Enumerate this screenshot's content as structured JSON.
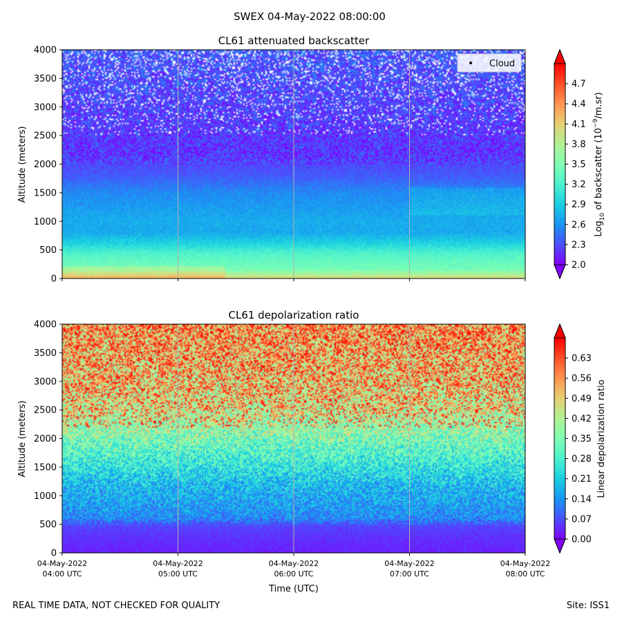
{
  "figure": {
    "suptitle": "SWEX 04-May-2022 08:00:00",
    "footer_left": "REAL TIME DATA, NOT CHECKED FOR QUALITY",
    "footer_right": "Site: ISS1",
    "xlabel": "Time (UTC)"
  },
  "colors": {
    "cmap": [
      "#8000ff",
      "#4c4ffc",
      "#1996f3",
      "#1acfe2",
      "#4cf2ce",
      "#80feb3",
      "#b2f295",
      "#e6cf73",
      "#ff964f",
      "#ff4f28",
      "#ff0000"
    ],
    "grid": "#b0b0b0",
    "cloud_marker": "#000000"
  },
  "chart_data": [
    {
      "type": "heatmap",
      "title": "CL61 attenuated backscatter",
      "ylabel": "Altitude (meters)",
      "ylim": [
        0,
        4000
      ],
      "yticks": [
        "0",
        "500",
        "1000",
        "1500",
        "2000",
        "2500",
        "3000",
        "3500",
        "4000"
      ],
      "x_range_utc_hours": [
        4,
        8
      ],
      "xticks": [
        {
          "date": "04-May-2022",
          "time": "04:00 UTC"
        },
        {
          "date": "04-May-2022",
          "time": "05:00 UTC"
        },
        {
          "date": "04-May-2022",
          "time": "06:00 UTC"
        },
        {
          "date": "04-May-2022",
          "time": "07:00 UTC"
        },
        {
          "date": "04-May-2022",
          "time": "08:00 UTC"
        }
      ],
      "show_xtick_labels": false,
      "legend": {
        "label": "Cloud",
        "loc": "top-right"
      },
      "colorbar": {
        "label_prefix": "Log",
        "label_sub": "10",
        "label_mid": " of backscatter (10",
        "label_sup": "−9",
        "label_suffix": "/m.sr)",
        "range": [
          2.0,
          5.0
        ],
        "ticks": [
          "2.0",
          "2.3",
          "2.6",
          "2.9",
          "3.2",
          "3.5",
          "3.8",
          "4.1",
          "4.4",
          "4.7"
        ],
        "extend": "both"
      },
      "profile": {
        "altitude_m": [
          0,
          150,
          300,
          450,
          600,
          800,
          1000,
          1200,
          1500,
          1800,
          2200,
          2800,
          3400,
          4000
        ],
        "typical_value": [
          4.0,
          3.45,
          3.35,
          3.2,
          2.95,
          2.7,
          2.72,
          2.65,
          2.55,
          2.35,
          2.2,
          2.25,
          2.3,
          2.35
        ],
        "missing_fraction_above_2500m": 0.12
      }
    },
    {
      "type": "heatmap",
      "title": "CL61 depolarization ratio",
      "ylabel": "Altitude (meters)",
      "ylim": [
        0,
        4000
      ],
      "yticks": [
        "0",
        "500",
        "1000",
        "1500",
        "2000",
        "2500",
        "3000",
        "3500",
        "4000"
      ],
      "x_range_utc_hours": [
        4,
        8
      ],
      "xticks": [
        {
          "date": "04-May-2022",
          "time": "04:00 UTC"
        },
        {
          "date": "04-May-2022",
          "time": "05:00 UTC"
        },
        {
          "date": "04-May-2022",
          "time": "06:00 UTC"
        },
        {
          "date": "04-May-2022",
          "time": "07:00 UTC"
        },
        {
          "date": "04-May-2022",
          "time": "08:00 UTC"
        }
      ],
      "show_xtick_labels": true,
      "colorbar": {
        "label": "Linear depolarization ratio",
        "range": [
          0.0,
          0.7
        ],
        "ticks": [
          "0.00",
          "0.07",
          "0.14",
          "0.21",
          "0.28",
          "0.35",
          "0.42",
          "0.49",
          "0.56",
          "0.63"
        ],
        "extend": "both"
      },
      "profile": {
        "altitude_m": [
          0,
          200,
          450,
          600,
          900,
          1200,
          1500,
          1800,
          2100,
          2500,
          3000,
          3500,
          4000
        ],
        "typical_value": [
          0.03,
          0.04,
          0.06,
          0.13,
          0.16,
          0.19,
          0.25,
          0.31,
          0.37,
          0.45,
          0.5,
          0.52,
          0.55
        ]
      }
    }
  ]
}
